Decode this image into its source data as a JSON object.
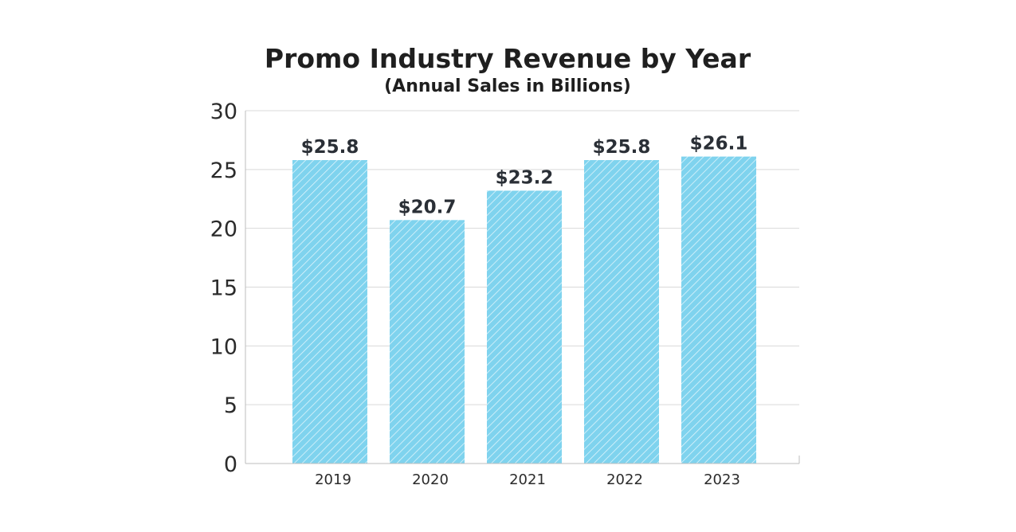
{
  "chart_data": {
    "type": "bar",
    "title": "Promo Industry Revenue by Year",
    "subtitle": "(Annual Sales in Billions)",
    "xlabel": "",
    "ylabel": "",
    "categories": [
      "2019",
      "2020",
      "2021",
      "2022",
      "2023"
    ],
    "values": [
      25.8,
      20.7,
      23.2,
      25.8,
      26.1
    ],
    "data_labels": [
      "$25.8",
      "$20.7",
      "$23.2",
      "$25.8",
      "$26.1"
    ],
    "ylim": [
      0,
      30
    ],
    "yticks": [
      0,
      5,
      10,
      15,
      20,
      25,
      30
    ],
    "ytick_labels": [
      "0",
      "5",
      "10",
      "15",
      "20",
      "25",
      "30"
    ],
    "grid": true,
    "legend": "none",
    "colors": {
      "bar": "#7fd3ee",
      "hatch": "#ffffff",
      "grid": "#d9d9d9",
      "axis": "#bdbdbd",
      "text": "#1f1f1f"
    }
  }
}
